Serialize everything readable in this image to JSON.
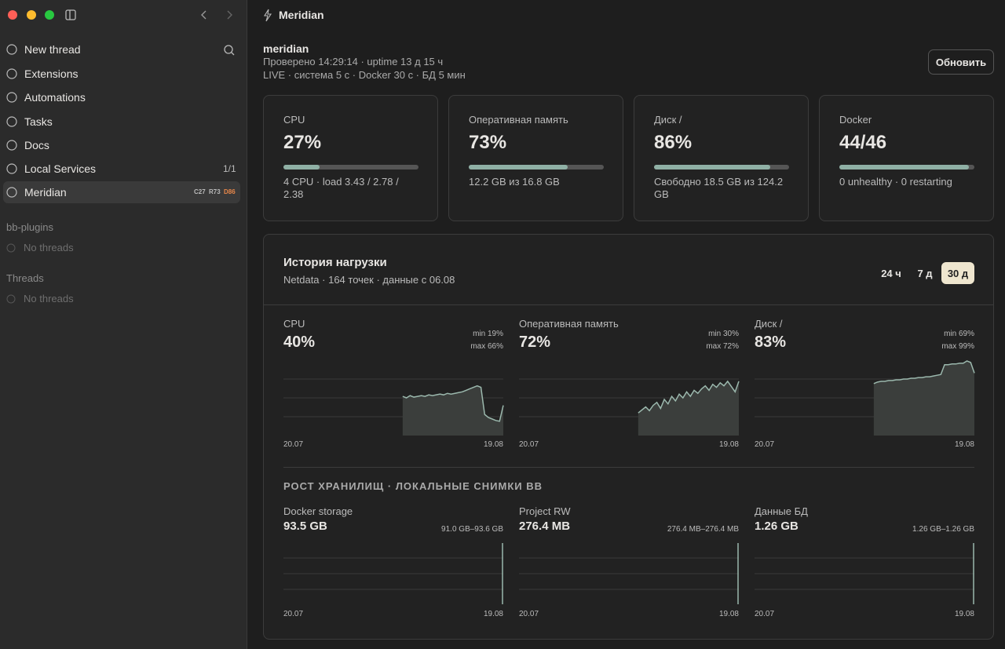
{
  "sidebar": {
    "nav": [
      {
        "label": "New thread"
      },
      {
        "label": "Extensions"
      },
      {
        "label": "Automations"
      },
      {
        "label": "Tasks"
      },
      {
        "label": "Docs"
      },
      {
        "label": "Local Services",
        "count": "1/1"
      },
      {
        "label": "Meridian",
        "badges": [
          "C27",
          "R73",
          "D86"
        ]
      }
    ],
    "sections": [
      {
        "title": "bb-plugins",
        "empty": "No threads"
      },
      {
        "title": "Threads",
        "empty": "No threads"
      }
    ]
  },
  "header": {
    "title": "Meridian"
  },
  "status": {
    "host": "meridian",
    "checked": "Проверено 14:29:14 · uptime 13 д 15 ч",
    "live": "LIVE · система 5 с · Docker 30 с · БД 5 мин",
    "button": "Обновить"
  },
  "cards": [
    {
      "label": "CPU",
      "value": "27%",
      "bar": {
        "value": 27,
        "max": 100
      },
      "detail": "4 CPU · load 3.43 / 2.78 / 2.38"
    },
    {
      "label": "Оперативная память",
      "value": "73%",
      "bar": {
        "value": 73,
        "max": 100
      },
      "detail": "12.2 GB из 16.8 GB"
    },
    {
      "label": "Диск /",
      "value": "86%",
      "bar": {
        "value": 86,
        "max": 100
      },
      "detail": "Свободно 18.5 GB из 124.2 GB"
    },
    {
      "label": "Docker",
      "value": "44/46",
      "bar": {
        "value": 44,
        "max": 46
      },
      "detail": "0 unhealthy · 0 restarting"
    }
  ],
  "history": {
    "title": "История нагрузки",
    "subtitle": "Netdata · 164 точек · данные с 06.08",
    "ranges": [
      "24 ч",
      "7 д",
      "30 д"
    ],
    "active_range": 2,
    "ylim": [
      0,
      100
    ],
    "gridlines": [
      25,
      50,
      75
    ],
    "charts": [
      {
        "label": "CPU",
        "value": "40%",
        "min": "min 19%",
        "max": "max 66%",
        "start_date": "20.07",
        "end_date": "19.08",
        "values": [
          null,
          null,
          null,
          null,
          null,
          null,
          null,
          null,
          null,
          null,
          null,
          null,
          null,
          null,
          null,
          null,
          null,
          null,
          null,
          null,
          null,
          null,
          null,
          null,
          null,
          null,
          null,
          null,
          null,
          null,
          null,
          null,
          52,
          50,
          53,
          51,
          52,
          53,
          52,
          54,
          53,
          54,
          55,
          54,
          56,
          55,
          56,
          57,
          58,
          60,
          62,
          64,
          66,
          64,
          28,
          24,
          22,
          20,
          19,
          40
        ]
      },
      {
        "label": "Оперативная память",
        "value": "72%",
        "min": "min 30%",
        "max": "max 72%",
        "start_date": "20.07",
        "end_date": "19.08",
        "values": [
          null,
          null,
          null,
          null,
          null,
          null,
          null,
          null,
          null,
          null,
          null,
          null,
          null,
          null,
          null,
          null,
          null,
          null,
          null,
          null,
          null,
          null,
          null,
          null,
          null,
          null,
          null,
          null,
          null,
          null,
          null,
          null,
          30,
          34,
          38,
          33,
          40,
          44,
          36,
          48,
          42,
          52,
          46,
          55,
          50,
          58,
          52,
          60,
          56,
          62,
          66,
          60,
          68,
          64,
          70,
          66,
          72,
          65,
          58,
          72
        ]
      },
      {
        "label": "Диск /",
        "value": "83%",
        "min": "min 69%",
        "max": "max 99%",
        "start_date": "20.07",
        "end_date": "19.08",
        "values": [
          null,
          null,
          null,
          null,
          null,
          null,
          null,
          null,
          null,
          null,
          null,
          null,
          null,
          null,
          null,
          null,
          null,
          null,
          null,
          null,
          null,
          null,
          null,
          null,
          null,
          null,
          null,
          null,
          null,
          null,
          null,
          null,
          69,
          71,
          72,
          72,
          73,
          73,
          74,
          74,
          75,
          75,
          76,
          76,
          77,
          77,
          78,
          78,
          79,
          80,
          81,
          94,
          94,
          95,
          95,
          96,
          96,
          99,
          97,
          83
        ]
      }
    ]
  },
  "storage": {
    "title": "РОСТ ХРАНИЛИЩ · ЛОКАЛЬНЫЕ СНИМКИ BB",
    "charts": [
      {
        "label": "Docker storage",
        "value": "93.5 GB",
        "range": "91.0 GB–93.6 GB",
        "start_date": "20.07",
        "end_date": "19.08"
      },
      {
        "label": "Project RW",
        "value": "276.4 MB",
        "range": "276.4 MB–276.4 MB",
        "start_date": "20.07",
        "end_date": "19.08"
      },
      {
        "label": "Данные БД",
        "value": "1.26 GB",
        "range": "1.26 GB–1.26 GB",
        "start_date": "20.07",
        "end_date": "19.08"
      }
    ]
  }
}
